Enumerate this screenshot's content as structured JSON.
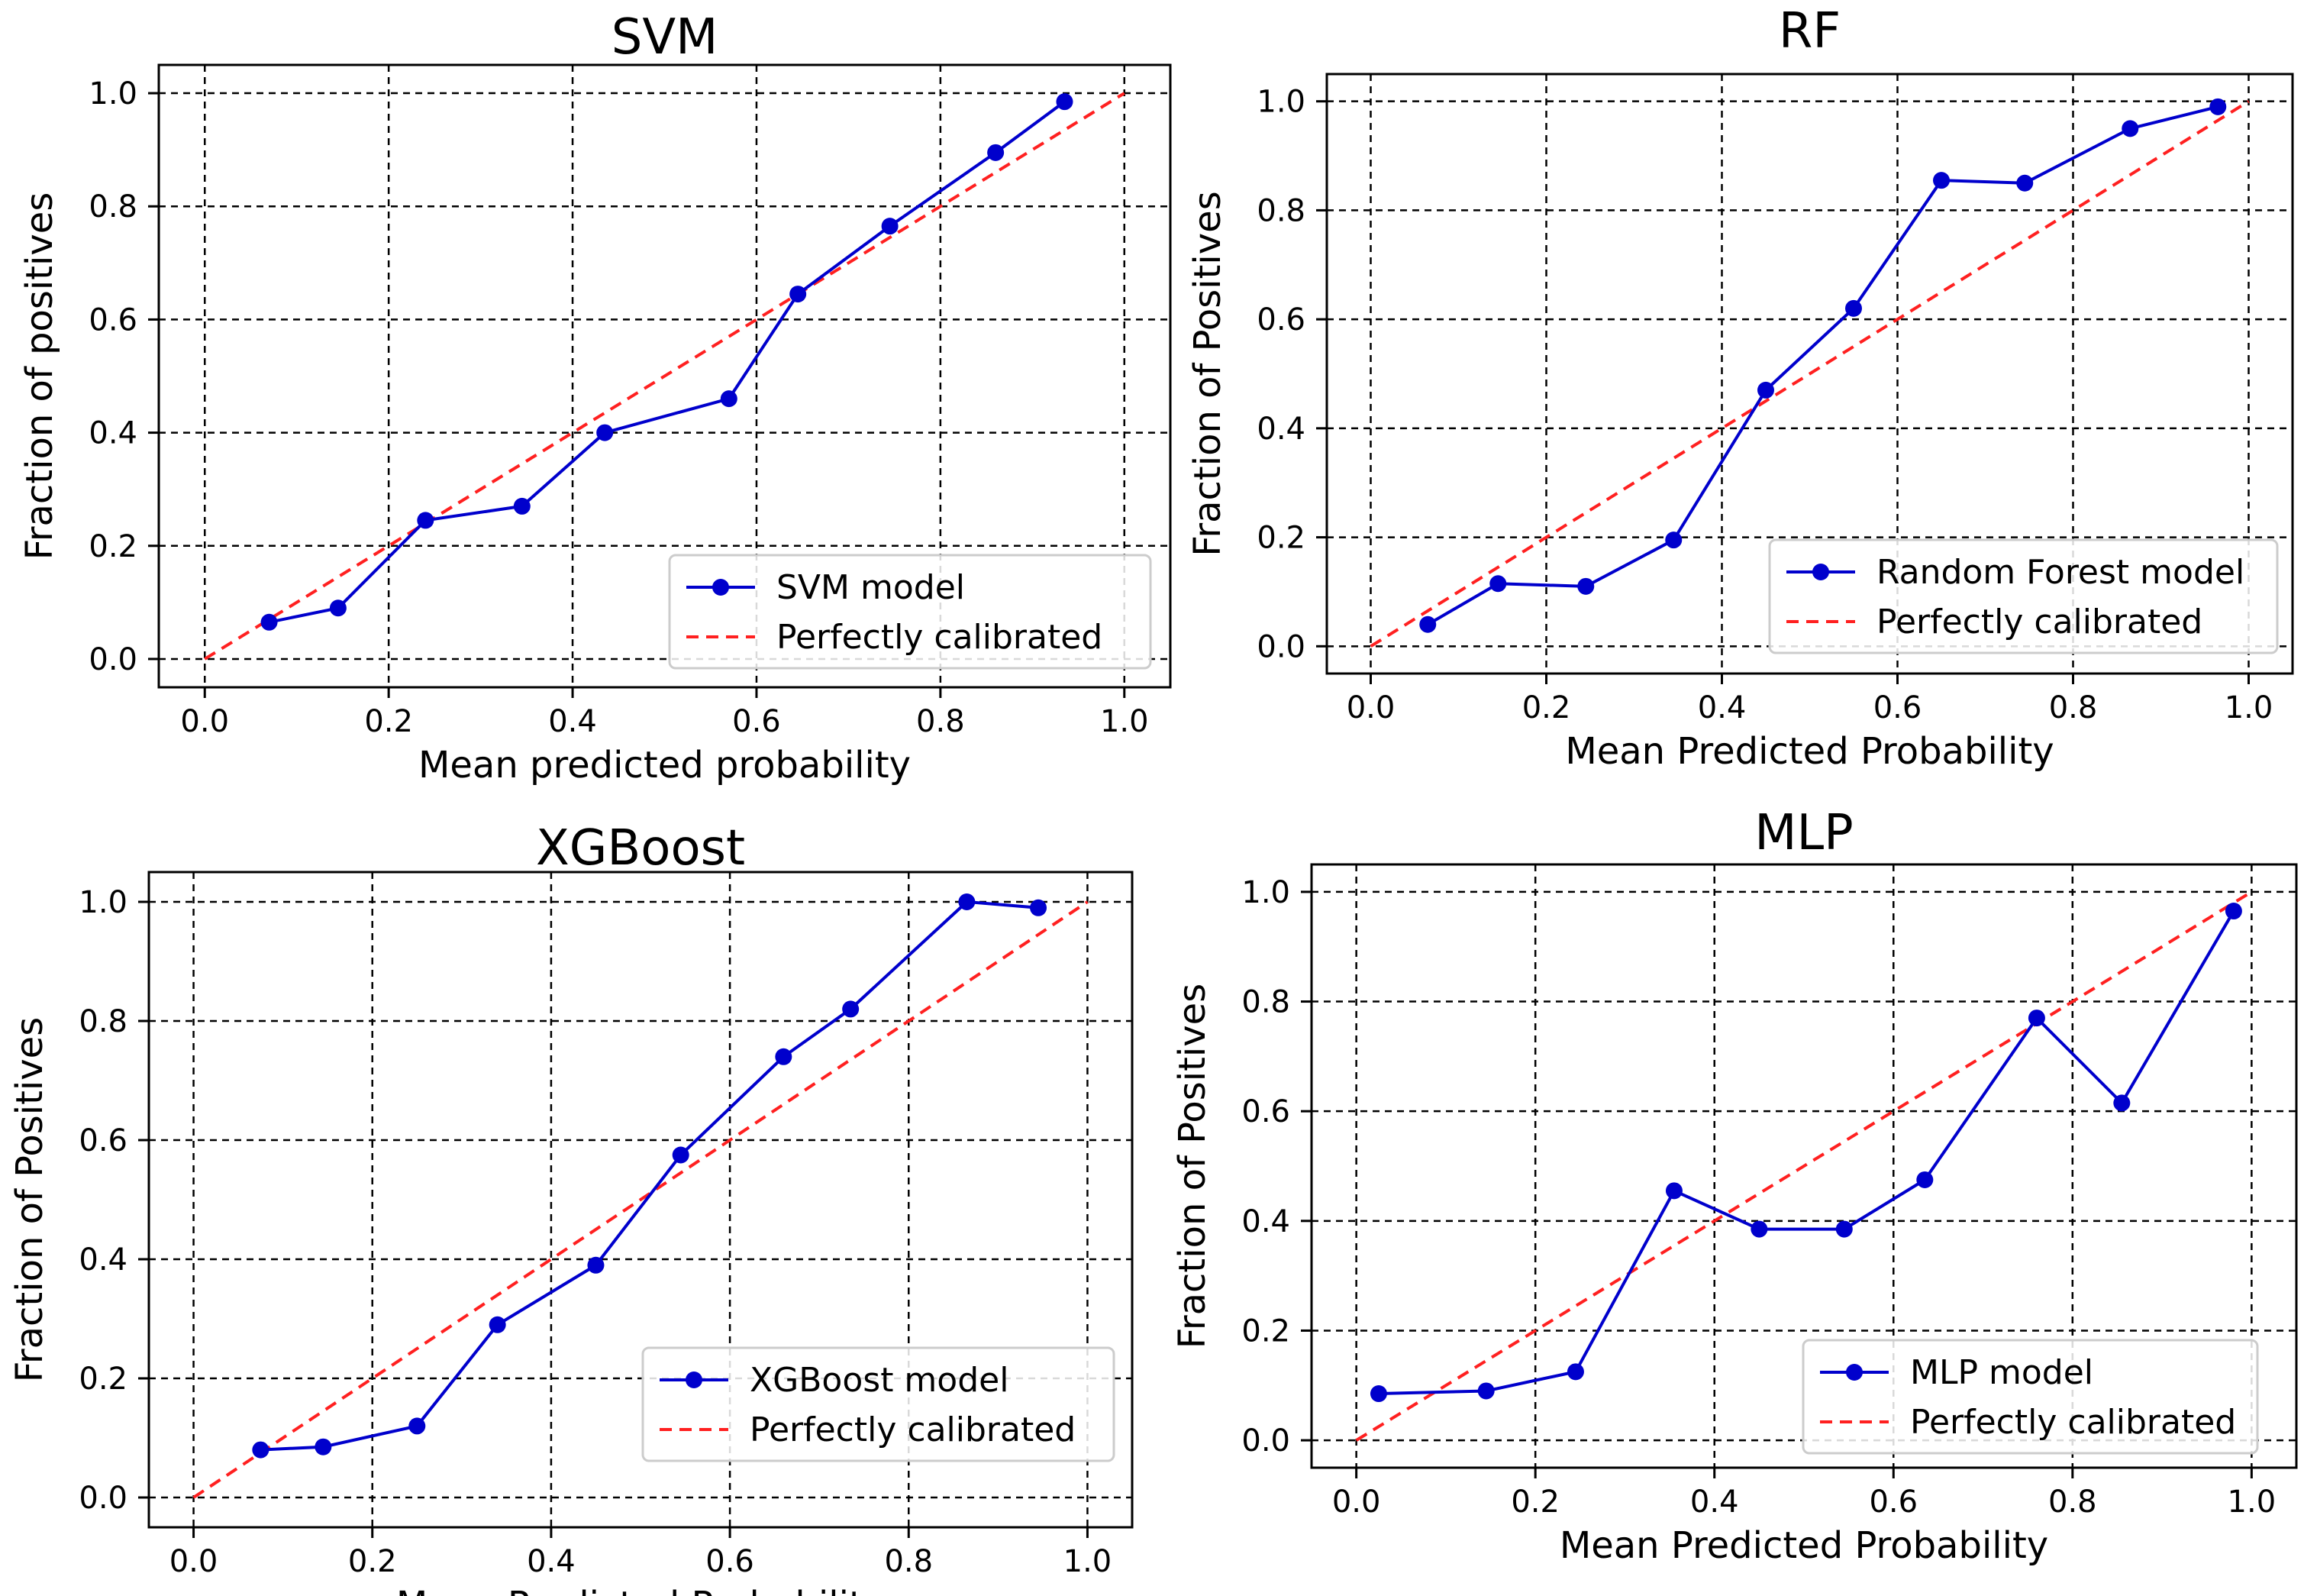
{
  "chart_data": [
    {
      "type": "line",
      "title": "SVM",
      "xlabel": "Mean predicted probability",
      "ylabel": "Fraction of positives",
      "xlim": [
        -0.05,
        1.05
      ],
      "ylim": [
        -0.05,
        1.05
      ],
      "xticks": [
        "0.0",
        "0.2",
        "0.4",
        "0.6",
        "0.8",
        "1.0"
      ],
      "yticks": [
        "0.0",
        "0.2",
        "0.4",
        "0.6",
        "0.8",
        "1.0"
      ],
      "grid": true,
      "legend_position": "bottom-right",
      "series": [
        {
          "name": "SVM model",
          "color": "#0000cc",
          "style": "solid-markers",
          "x": [
            0.07,
            0.145,
            0.24,
            0.345,
            0.435,
            0.57,
            0.645,
            0.745,
            0.86,
            0.935
          ],
          "y": [
            0.065,
            0.09,
            0.245,
            0.27,
            0.4,
            0.46,
            0.645,
            0.765,
            0.895,
            0.985
          ]
        },
        {
          "name": "Perfectly calibrated",
          "color": "#ff2020",
          "style": "dashed",
          "x": [
            0,
            1
          ],
          "y": [
            0,
            1
          ]
        }
      ]
    },
    {
      "type": "line",
      "title": "RF",
      "xlabel": "Mean Predicted Probability",
      "ylabel": "Fraction of Positives",
      "xlim": [
        -0.05,
        1.05
      ],
      "ylim": [
        -0.05,
        1.05
      ],
      "xticks": [
        "0.0",
        "0.2",
        "0.4",
        "0.6",
        "0.8",
        "1.0"
      ],
      "yticks": [
        "0.0",
        "0.2",
        "0.4",
        "0.6",
        "0.8",
        "1.0"
      ],
      "grid": true,
      "legend_position": "bottom-right",
      "series": [
        {
          "name": "Random Forest model",
          "color": "#0000cc",
          "style": "solid-markers",
          "x": [
            0.065,
            0.145,
            0.245,
            0.345,
            0.45,
            0.55,
            0.65,
            0.745,
            0.865,
            0.965
          ],
          "y": [
            0.04,
            0.115,
            0.11,
            0.195,
            0.47,
            0.62,
            0.855,
            0.85,
            0.95,
            0.99
          ]
        },
        {
          "name": "Perfectly calibrated",
          "color": "#ff2020",
          "style": "dashed",
          "x": [
            0,
            1
          ],
          "y": [
            0,
            1
          ]
        }
      ]
    },
    {
      "type": "line",
      "title": "XGBoost",
      "xlabel": "Mean Predicted Probability",
      "ylabel": "Fraction of Positives",
      "xlim": [
        -0.05,
        1.05
      ],
      "ylim": [
        -0.05,
        1.05
      ],
      "xticks": [
        "0.0",
        "0.2",
        "0.4",
        "0.6",
        "0.8",
        "1.0"
      ],
      "yticks": [
        "0.0",
        "0.2",
        "0.4",
        "0.6",
        "0.8",
        "1.0"
      ],
      "grid": true,
      "legend_position": "bottom-right",
      "series": [
        {
          "name": "XGBoost model",
          "color": "#0000cc",
          "style": "solid-markers",
          "x": [
            0.075,
            0.145,
            0.25,
            0.34,
            0.45,
            0.545,
            0.66,
            0.735,
            0.865,
            0.945
          ],
          "y": [
            0.08,
            0.085,
            0.12,
            0.29,
            0.39,
            0.575,
            0.74,
            0.82,
            1.0,
            0.99
          ]
        },
        {
          "name": "Perfectly calibrated",
          "color": "#ff2020",
          "style": "dashed",
          "x": [
            0,
            1
          ],
          "y": [
            0,
            1
          ]
        }
      ]
    },
    {
      "type": "line",
      "title": "MLP",
      "xlabel": "Mean Predicted Probability",
      "ylabel": "Fraction of Positives",
      "xlim": [
        -0.05,
        1.05
      ],
      "ylim": [
        -0.05,
        1.05
      ],
      "xticks": [
        "0.0",
        "0.2",
        "0.4",
        "0.6",
        "0.8",
        "1.0"
      ],
      "yticks": [
        "0.0",
        "0.2",
        "0.4",
        "0.6",
        "0.8",
        "1.0"
      ],
      "grid": true,
      "legend_position": "bottom-right",
      "series": [
        {
          "name": "MLP model",
          "color": "#0000cc",
          "style": "solid-markers",
          "x": [
            0.025,
            0.145,
            0.245,
            0.355,
            0.45,
            0.545,
            0.635,
            0.76,
            0.855,
            0.98
          ],
          "y": [
            0.085,
            0.09,
            0.125,
            0.455,
            0.385,
            0.385,
            0.475,
            0.77,
            0.615,
            0.965
          ]
        },
        {
          "name": "Perfectly calibrated",
          "color": "#ff2020",
          "style": "dashed",
          "x": [
            0,
            1
          ],
          "y": [
            0,
            1
          ]
        }
      ]
    }
  ]
}
